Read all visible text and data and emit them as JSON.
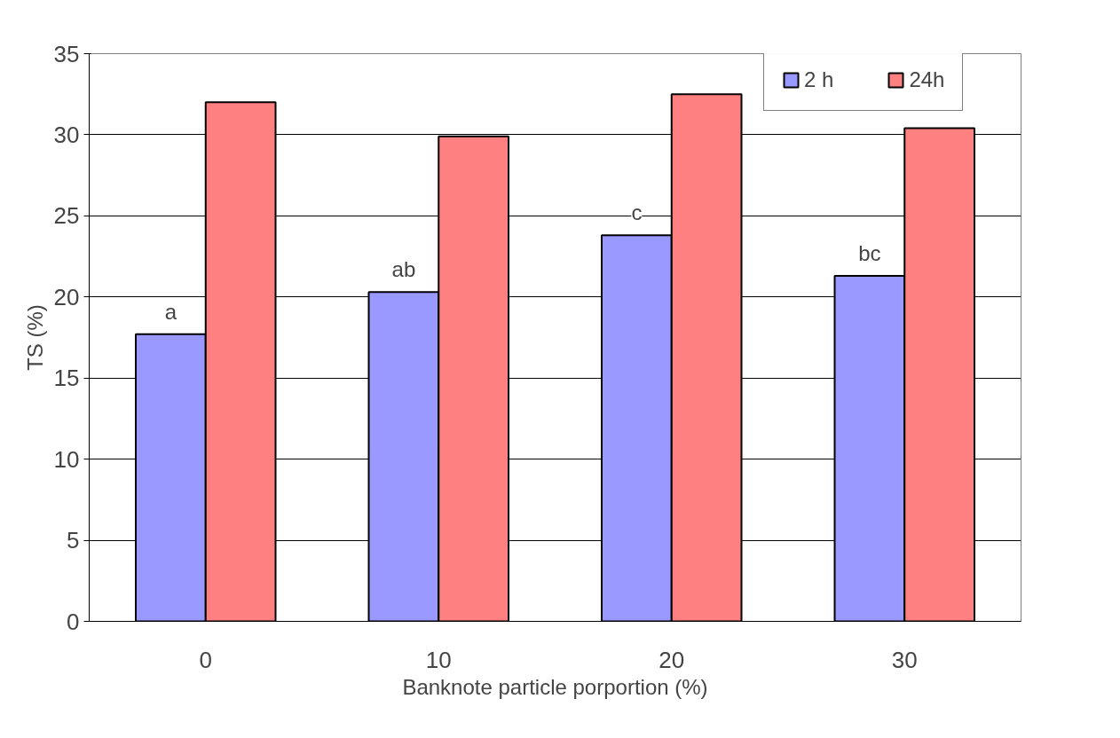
{
  "chart_data": {
    "type": "bar",
    "xlabel": "Banknote particle porportion (%)",
    "ylabel": "TS (%)",
    "categories": [
      "0",
      "10",
      "20",
      "30"
    ],
    "series": [
      {
        "name": "2 h",
        "color": "#9999ff",
        "values": [
          17.7,
          20.3,
          23.8,
          21.3
        ]
      },
      {
        "name": "24h",
        "color": "#ff8080",
        "values": [
          32.0,
          29.9,
          32.5,
          30.4
        ]
      }
    ],
    "ylim": [
      0,
      35
    ],
    "yticks": [
      0,
      5,
      10,
      15,
      20,
      25,
      30,
      35
    ],
    "grid": "y",
    "legend": "top right",
    "annotations": [
      {
        "text": "a",
        "x": "0",
        "y": 17.7
      },
      {
        "text": "ab",
        "x": "10",
        "y": 20.3
      },
      {
        "text": "c",
        "x": "20",
        "y": 23.8
      },
      {
        "text": "bc",
        "x": "30",
        "y": 21.3
      }
    ]
  }
}
